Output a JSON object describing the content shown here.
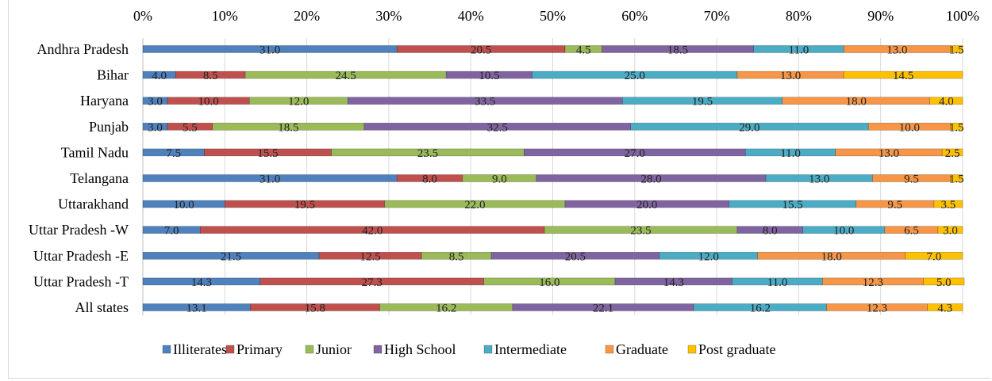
{
  "chart_data": {
    "type": "bar",
    "orientation": "horizontal",
    "stacked": "percent",
    "x_ticks": [
      "0%",
      "10%",
      "20%",
      "30%",
      "40%",
      "50%",
      "60%",
      "70%",
      "80%",
      "90%",
      "100%"
    ],
    "xlim": [
      0,
      100
    ],
    "axis_position": "top",
    "grid": true,
    "legend_position": "bottom",
    "categories": [
      "Andhra Pradesh",
      "Bihar",
      "Haryana",
      "Punjab",
      "Tamil Nadu",
      "Telangana",
      "Uttarakhand",
      "Uttar Pradesh -W",
      "Uttar Pradesh -E",
      "Uttar Pradesh -T",
      "All states"
    ],
    "series": [
      {
        "name": "Illiterates",
        "color": "#4f81bd",
        "values": [
          31.0,
          4.0,
          3.0,
          3.0,
          7.5,
          31.0,
          10.0,
          7.0,
          21.5,
          14.3,
          13.1
        ]
      },
      {
        "name": "Primary",
        "color": "#c0504d",
        "values": [
          20.5,
          8.5,
          10.0,
          5.5,
          15.5,
          8.0,
          19.5,
          42.0,
          12.5,
          27.3,
          15.8
        ]
      },
      {
        "name": "Junior",
        "color": "#9bbb59",
        "values": [
          4.5,
          24.5,
          12.0,
          18.5,
          23.5,
          9.0,
          22.0,
          23.5,
          8.5,
          16.0,
          16.2
        ]
      },
      {
        "name": "High School",
        "color": "#8064a2",
        "values": [
          18.5,
          10.5,
          33.5,
          32.5,
          27.0,
          28.0,
          20.0,
          8.0,
          20.5,
          14.3,
          22.1
        ]
      },
      {
        "name": "Intermediate",
        "color": "#4bacc6",
        "values": [
          11.0,
          25.0,
          19.5,
          29.0,
          11.0,
          13.0,
          15.5,
          10.0,
          12.0,
          11.0,
          16.2
        ]
      },
      {
        "name": "Graduate",
        "color": "#f79646",
        "values": [
          13.0,
          13.0,
          18.0,
          10.0,
          13.0,
          9.5,
          9.5,
          6.5,
          18.0,
          12.3,
          12.3
        ]
      },
      {
        "name": "Post graduate",
        "color": "#ffc000",
        "values": [
          1.5,
          14.5,
          4.0,
          1.5,
          2.5,
          1.5,
          3.5,
          3.0,
          7.0,
          5.0,
          4.3
        ]
      }
    ]
  }
}
